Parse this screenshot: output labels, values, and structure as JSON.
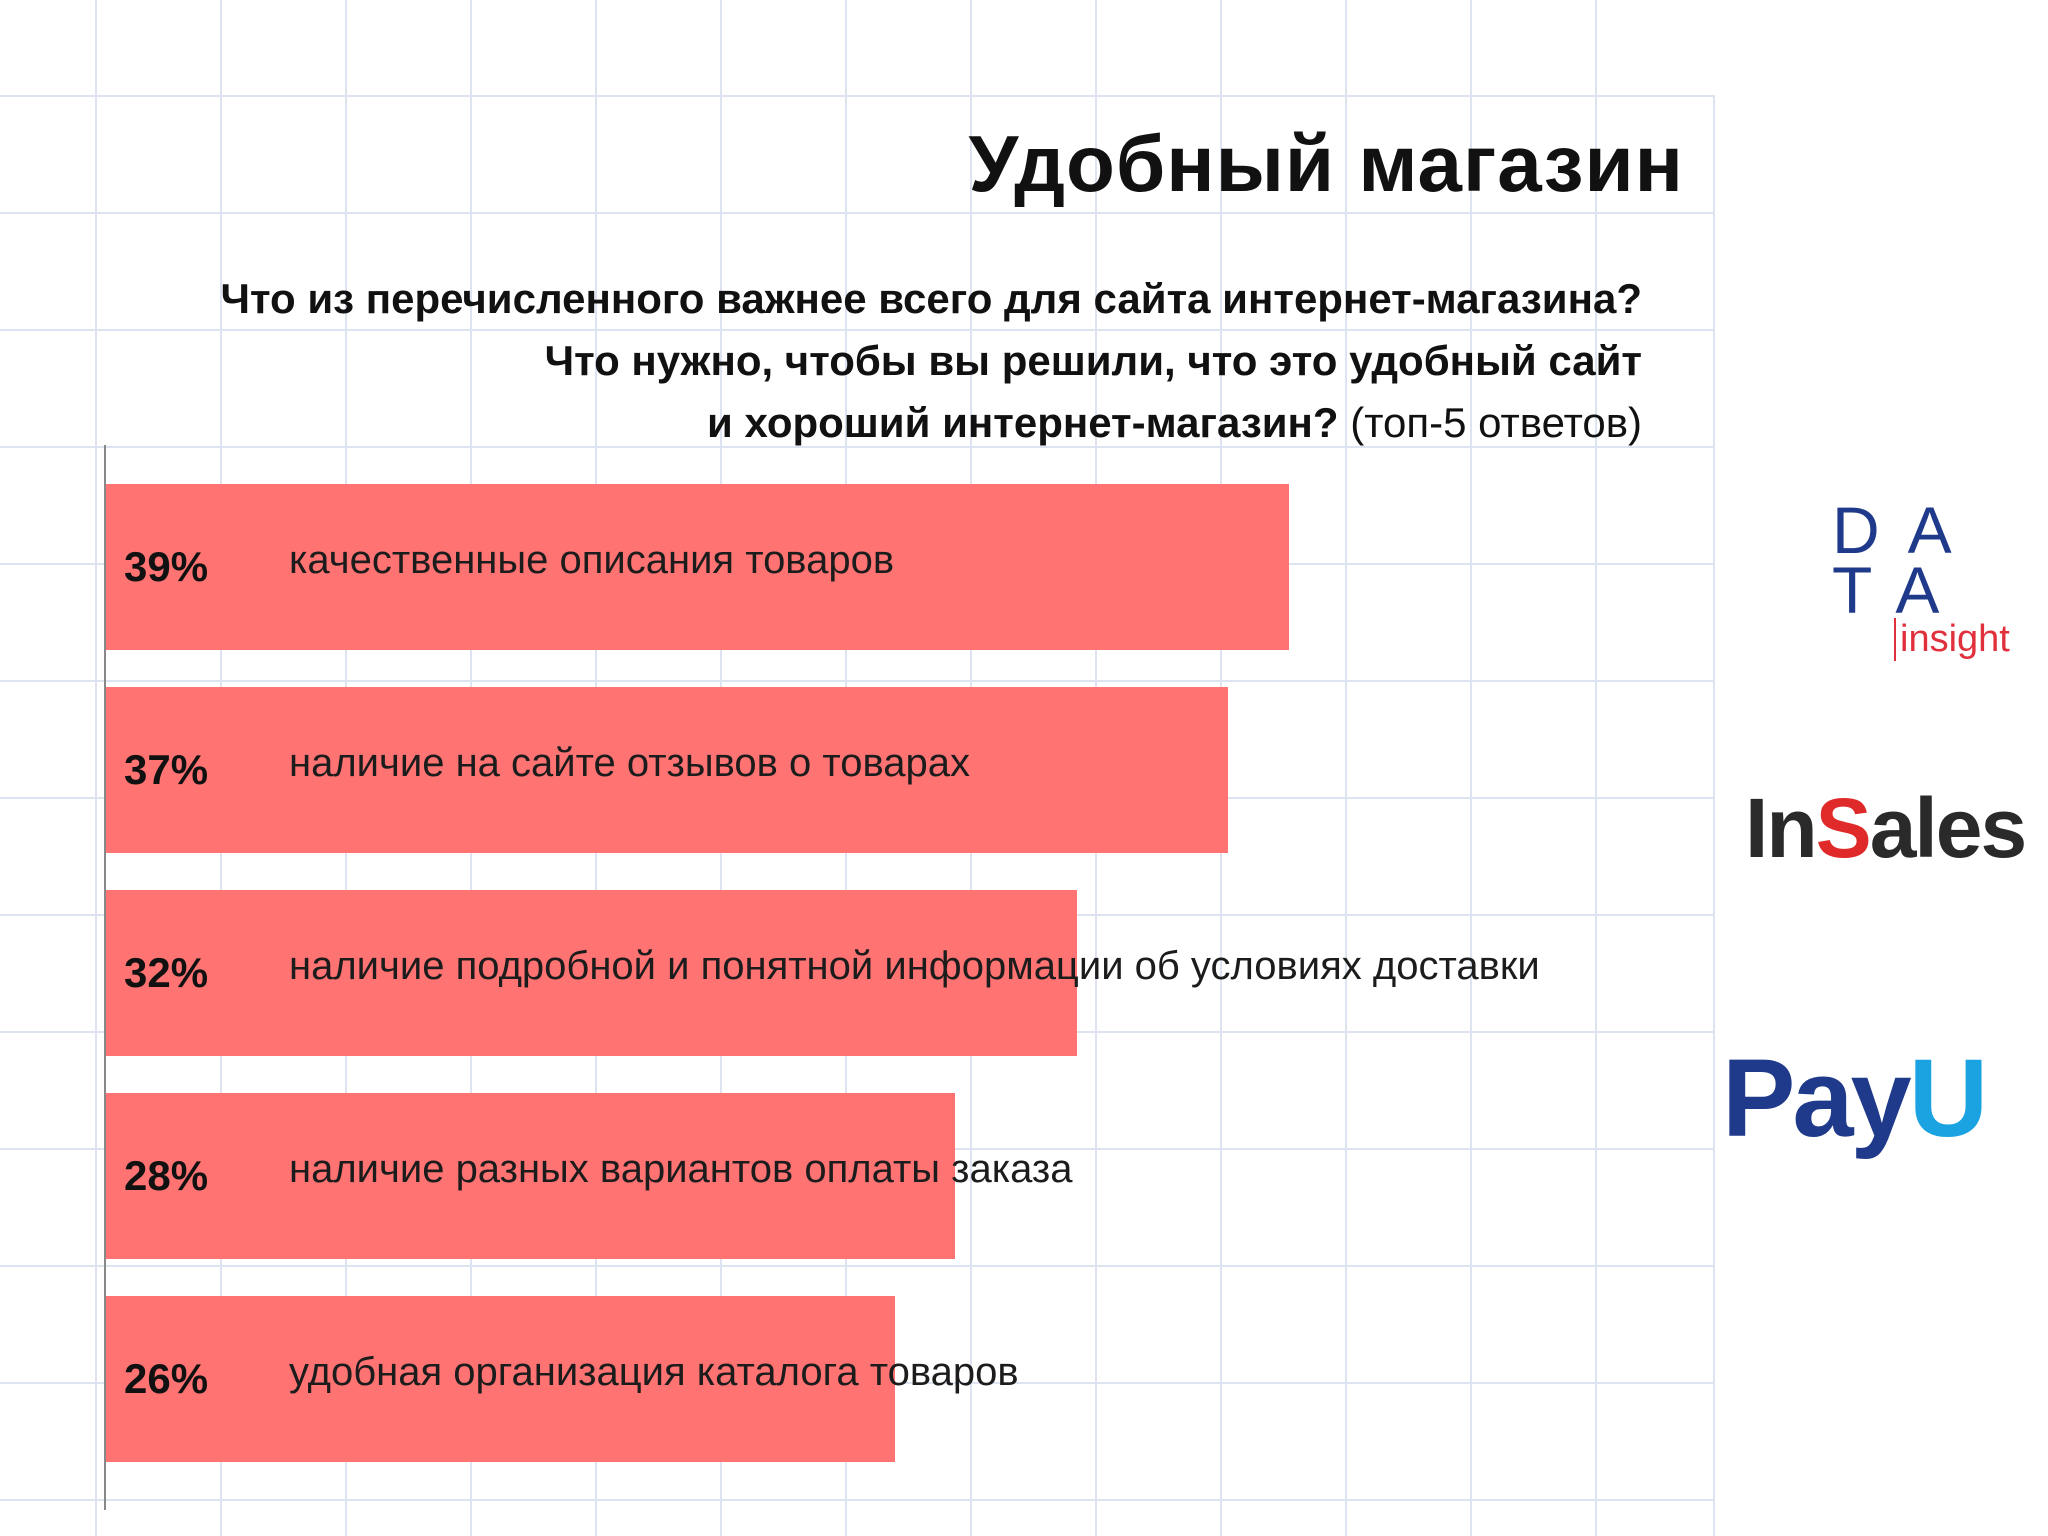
{
  "title": "Удобный магазин",
  "question": {
    "line1": "Что из перечисленного важнее всего для сайта интернет-магазина?",
    "line2": "Что нужно, чтобы вы решили, что это удобный сайт",
    "line3": "и хороший интернет-магазин?",
    "note": "(топ-5 ответов)"
  },
  "colors": {
    "bar": "#ff7373",
    "grid": "#dde3f0"
  },
  "chart_data": {
    "type": "bar",
    "orientation": "horizontal",
    "categories": [
      "качественные описания товаров",
      "наличие на сайте отзывов о товарах",
      "наличие подробной и понятной информации об условиях доставки",
      "наличие разных вариантов оплаты заказа",
      "удобная организация каталога товаров"
    ],
    "values": [
      39,
      37,
      32,
      28,
      26
    ],
    "value_labels": [
      "39%",
      "37%",
      "32%",
      "28%",
      "26%"
    ]
  },
  "logos": {
    "data_insight": {
      "line1": "DA",
      "line2": "TA",
      "line3": "insight"
    },
    "insales": {
      "part1": "In",
      "part2": "S",
      "part3": "ales"
    },
    "payu": {
      "part1": "Pay",
      "part2": "U"
    }
  }
}
